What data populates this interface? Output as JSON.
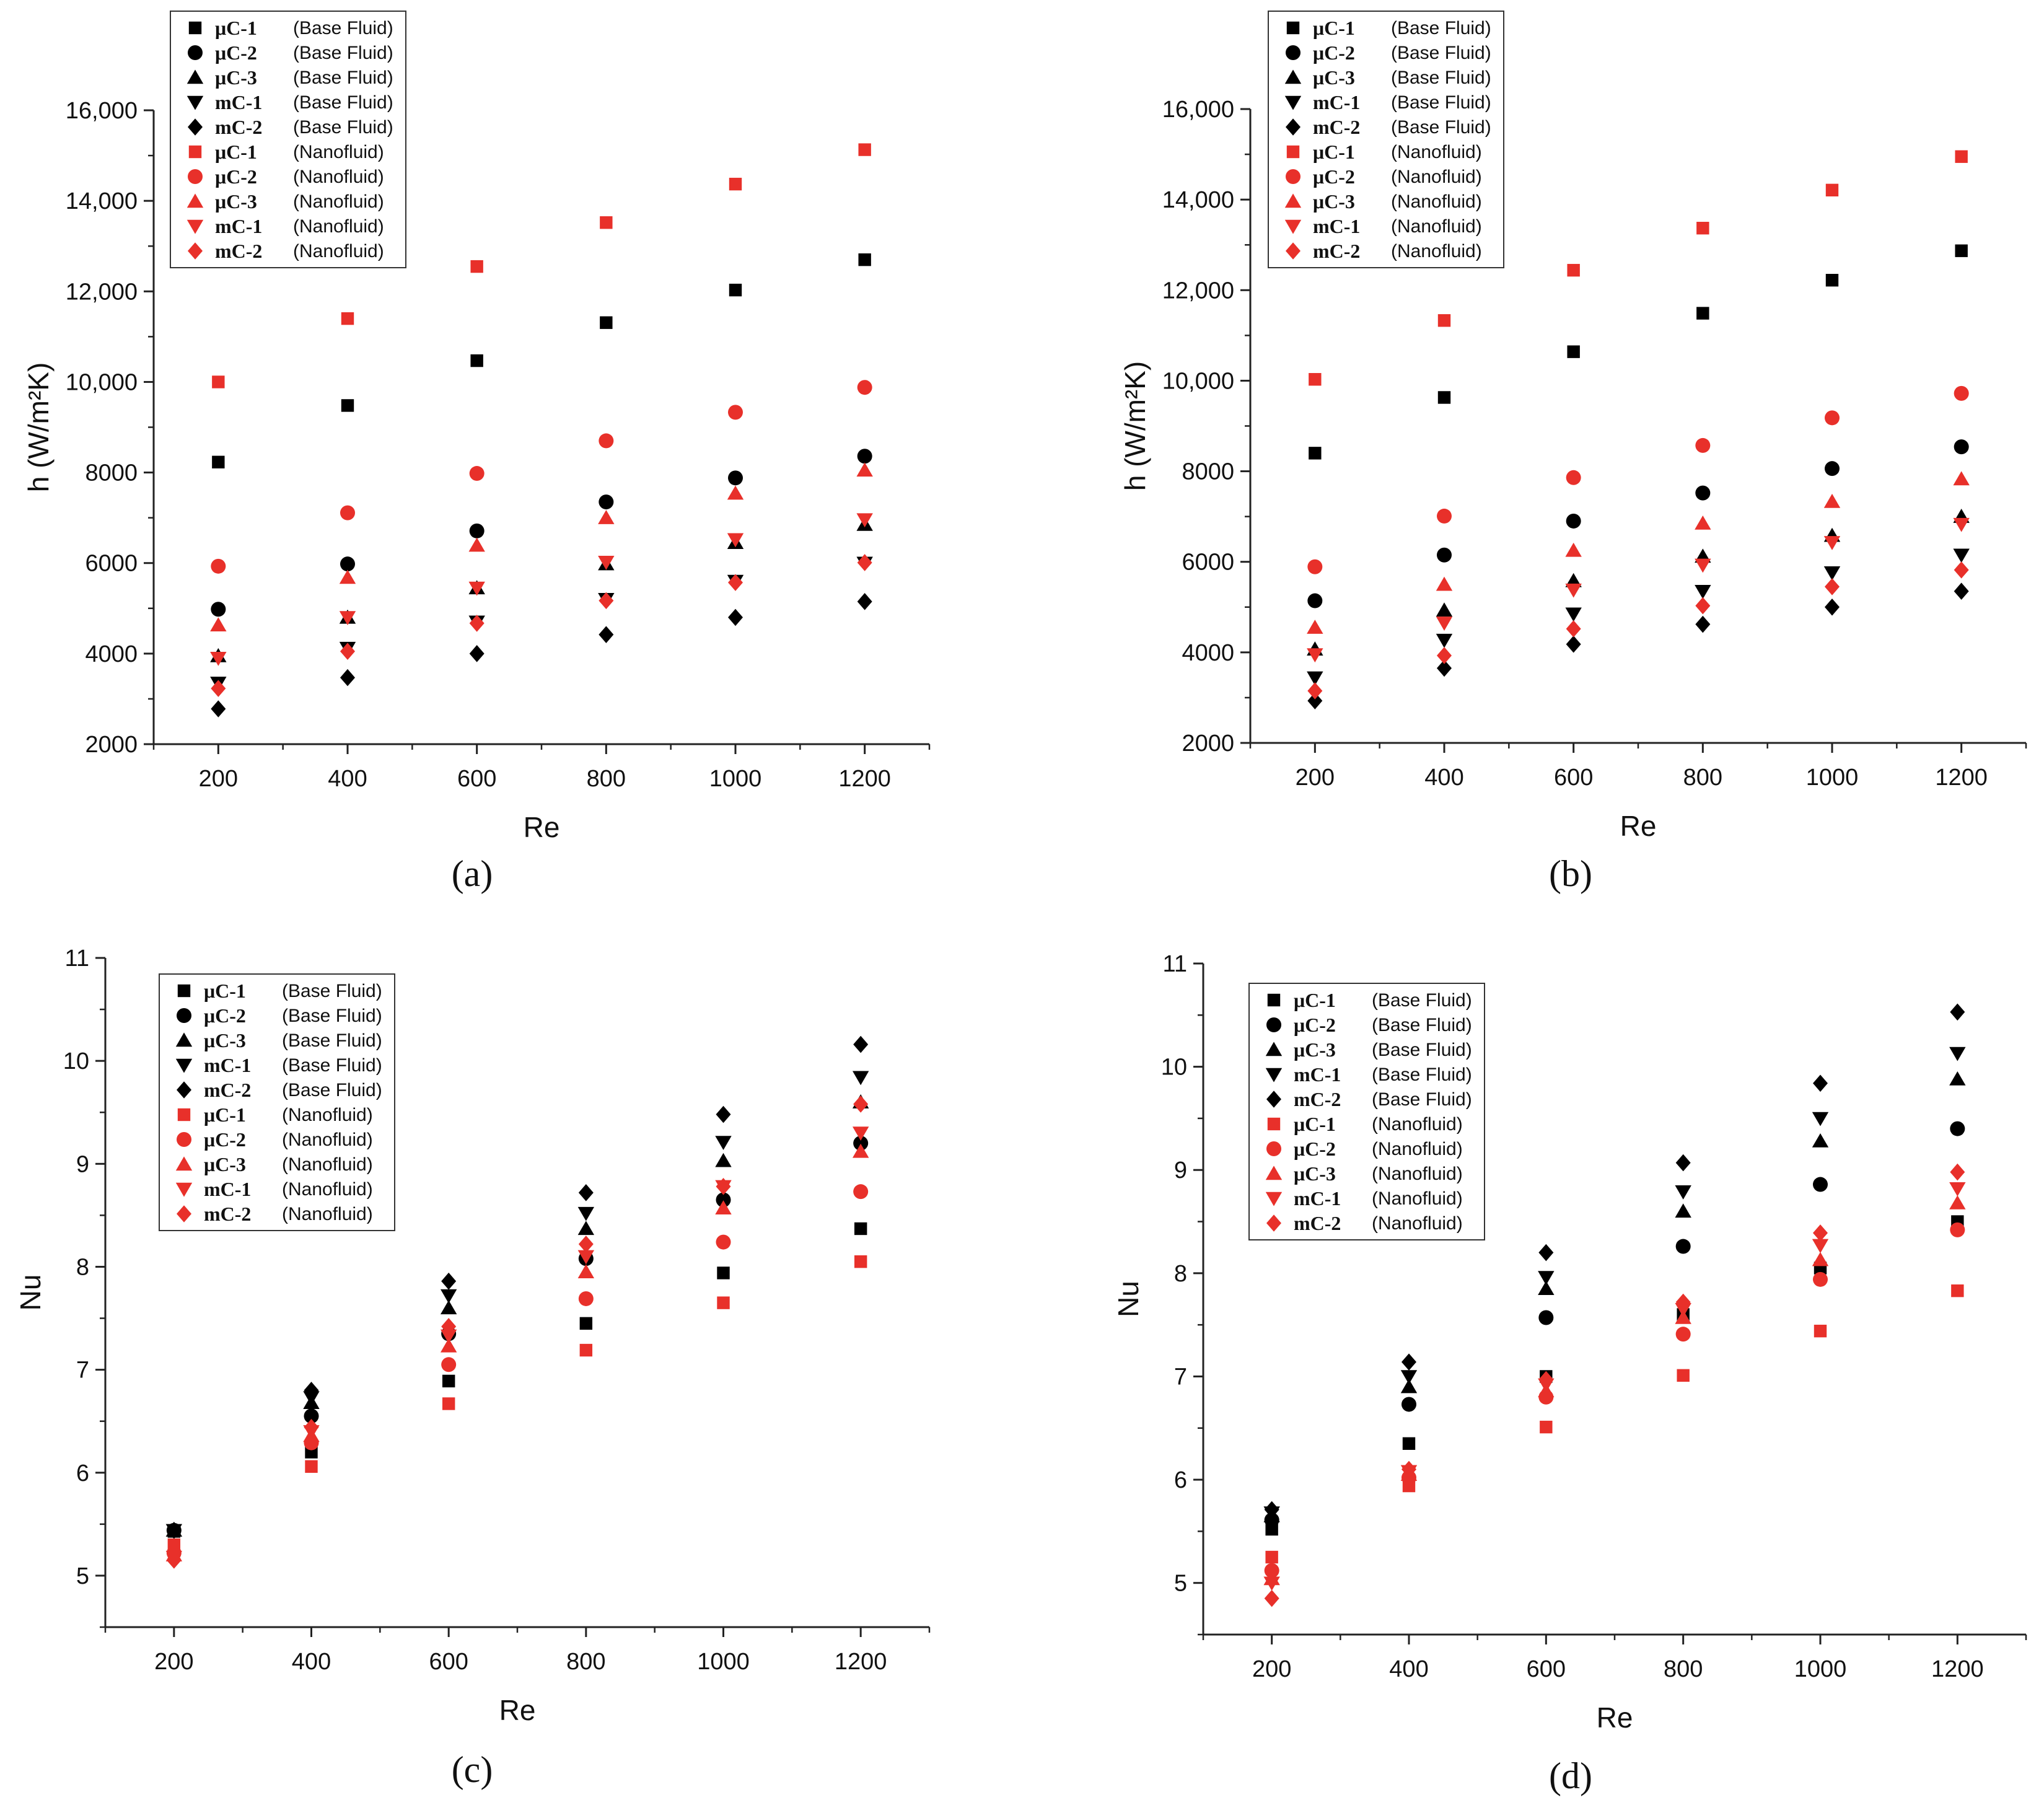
{
  "colors": {
    "base_fluid": "#000000",
    "nanofluid": "#e8302a",
    "axis": "#222222"
  },
  "legend_entries": [
    {
      "code": "μC-1",
      "fluid": "(Base Fluid)",
      "marker": "square",
      "color": "#000000"
    },
    {
      "code": "μC-2",
      "fluid": "(Base Fluid)",
      "marker": "circle",
      "color": "#000000"
    },
    {
      "code": "μC-3",
      "fluid": "(Base Fluid)",
      "marker": "triangle-up",
      "color": "#000000"
    },
    {
      "code": "mC-1",
      "fluid": "(Base Fluid)",
      "marker": "triangle-down",
      "color": "#000000"
    },
    {
      "code": "mC-2",
      "fluid": "(Base Fluid)",
      "marker": "diamond",
      "color": "#000000"
    },
    {
      "code": "μC-1",
      "fluid": "(Nanofluid)",
      "marker": "square",
      "color": "#e8302a"
    },
    {
      "code": "μC-2",
      "fluid": "(Nanofluid)",
      "marker": "circle",
      "color": "#e8302a"
    },
    {
      "code": "μC-3",
      "fluid": "(Nanofluid)",
      "marker": "triangle-up",
      "color": "#e8302a"
    },
    {
      "code": "mC-1",
      "fluid": "(Nanofluid)",
      "marker": "triangle-down",
      "color": "#e8302a"
    },
    {
      "code": "mC-2",
      "fluid": "(Nanofluid)",
      "marker": "diamond",
      "color": "#e8302a"
    }
  ],
  "chart_data": [
    {
      "panel": "(a)",
      "type": "scatter",
      "xlabel": "Re",
      "ylabel": "h (W/m²K)",
      "x": [
        200,
        400,
        600,
        800,
        1000,
        1200
      ],
      "xticks": [
        "200",
        "400",
        "600",
        "800",
        "1000",
        "1200"
      ],
      "xlim": [
        100,
        1300
      ],
      "ylim": [
        2000,
        16000
      ],
      "yticks": [
        "2000",
        "4000",
        "6000",
        "8000",
        "10,000",
        "12,000",
        "14,000",
        "16,000"
      ],
      "legend_position": "top-left",
      "series": [
        {
          "name": "μC-1 (Base Fluid)",
          "values": [
            8230,
            9480,
            10470,
            11310,
            12030,
            12700
          ]
        },
        {
          "name": "μC-2 (Base Fluid)",
          "values": [
            4980,
            5980,
            6710,
            7350,
            7880,
            8360
          ]
        },
        {
          "name": "μC-3 (Base Fluid)",
          "values": [
            3950,
            4800,
            5450,
            5980,
            6450,
            6850
          ]
        },
        {
          "name": "mC-1 (Base Fluid)",
          "values": [
            3350,
            4120,
            4700,
            5200,
            5600,
            6000
          ]
        },
        {
          "name": "mC-2 (Base Fluid)",
          "values": [
            2780,
            3470,
            4000,
            4420,
            4800,
            5150
          ]
        },
        {
          "name": "μC-1 (Nanofluid)",
          "values": [
            10000,
            11400,
            12550,
            13520,
            14370,
            15130
          ]
        },
        {
          "name": "μC-2 (Nanofluid)",
          "values": [
            5930,
            7110,
            7980,
            8700,
            9330,
            9880
          ]
        },
        {
          "name": "μC-3 (Nanofluid)",
          "values": [
            4630,
            5680,
            6390,
            7000,
            7540,
            8050
          ]
        },
        {
          "name": "mC-1 (Nanofluid)",
          "values": [
            3900,
            4800,
            5450,
            6020,
            6520,
            6960
          ]
        },
        {
          "name": "mC-2 (Nanofluid)",
          "values": [
            3230,
            4050,
            4670,
            5170,
            5570,
            6010
          ]
        }
      ]
    },
    {
      "panel": "(b)",
      "type": "scatter",
      "xlabel": "Re",
      "ylabel": "h (W/m²K)",
      "x": [
        200,
        400,
        600,
        800,
        1000,
        1200
      ],
      "xticks": [
        "200",
        "400",
        "600",
        "800",
        "1000",
        "1200"
      ],
      "xlim": [
        100,
        1300
      ],
      "ylim": [
        2000,
        16000
      ],
      "yticks": [
        "2000",
        "4000",
        "6000",
        "8000",
        "10,000",
        "12,000",
        "14,000",
        "16,000"
      ],
      "legend_position": "top-left",
      "series": [
        {
          "name": "μC-1 (Base Fluid)",
          "values": [
            8400,
            9630,
            10640,
            11490,
            12220,
            12870
          ]
        },
        {
          "name": "μC-2 (Base Fluid)",
          "values": [
            5140,
            6150,
            6900,
            7520,
            8060,
            8540
          ]
        },
        {
          "name": "μC-3 (Base Fluid)",
          "values": [
            4070,
            4930,
            5580,
            6120,
            6580,
            7000
          ]
        },
        {
          "name": "mC-1 (Base Fluid)",
          "values": [
            3440,
            4270,
            4850,
            5350,
            5760,
            6150
          ]
        },
        {
          "name": "mC-2 (Base Fluid)",
          "values": [
            2930,
            3650,
            4180,
            4620,
            5000,
            5350
          ]
        },
        {
          "name": "μC-1 (Nanofluid)",
          "values": [
            10030,
            11330,
            12440,
            13370,
            14210,
            14950
          ]
        },
        {
          "name": "μC-2 (Nanofluid)",
          "values": [
            5890,
            7010,
            7860,
            8570,
            9180,
            9720
          ]
        },
        {
          "name": "μC-3 (Nanofluid)",
          "values": [
            4550,
            5500,
            6250,
            6850,
            7330,
            7830
          ]
        },
        {
          "name": "mC-1 (Nanofluid)",
          "values": [
            3950,
            4650,
            5380,
            5930,
            6430,
            6830
          ]
        },
        {
          "name": "mC-2 (Nanofluid)",
          "values": [
            3150,
            3930,
            4520,
            5030,
            5450,
            5820
          ]
        }
      ]
    },
    {
      "panel": "(c)",
      "type": "scatter",
      "xlabel": "Re",
      "ylabel": "Nu",
      "x": [
        200,
        400,
        600,
        800,
        1000,
        1200
      ],
      "xticks": [
        "200",
        "400",
        "600",
        "800",
        "1000",
        "1200"
      ],
      "xlim": [
        100,
        1300
      ],
      "ylim": [
        4.5,
        11
      ],
      "yticks": [
        "5",
        "6",
        "7",
        "8",
        "9",
        "10",
        "11"
      ],
      "legend_position": "top-left",
      "series": [
        {
          "name": "μC-1 (Base Fluid)",
          "values": [
            5.43,
            6.2,
            6.89,
            7.45,
            7.94,
            8.37
          ]
        },
        {
          "name": "μC-2 (Base Fluid)",
          "values": [
            5.44,
            6.55,
            7.35,
            8.08,
            8.65,
            9.2
          ]
        },
        {
          "name": "μC-3 (Base Fluid)",
          "values": [
            5.44,
            6.68,
            7.6,
            8.37,
            9.03,
            9.6
          ]
        },
        {
          "name": "mC-1 (Base Fluid)",
          "values": [
            5.44,
            6.73,
            7.72,
            8.52,
            9.21,
            9.84
          ]
        },
        {
          "name": "mC-2 (Base Fluid)",
          "values": [
            5.44,
            6.8,
            7.86,
            8.72,
            9.48,
            10.16
          ]
        },
        {
          "name": "μC-1 (Nanofluid)",
          "values": [
            5.3,
            6.06,
            6.67,
            7.19,
            7.65,
            8.05
          ]
        },
        {
          "name": "μC-2 (Nanofluid)",
          "values": [
            5.22,
            6.29,
            7.05,
            7.69,
            8.24,
            8.73
          ]
        },
        {
          "name": "μC-3 (Nanofluid)",
          "values": [
            5.2,
            6.36,
            7.23,
            7.95,
            8.57,
            9.12
          ]
        },
        {
          "name": "mC-1 (Nanofluid)",
          "values": [
            5.18,
            6.4,
            7.33,
            8.1,
            8.78,
            9.3
          ]
        },
        {
          "name": "mC-2 (Nanofluid)",
          "values": [
            5.15,
            6.44,
            7.42,
            8.22,
            8.78,
            9.58
          ]
        }
      ]
    },
    {
      "panel": "(d)",
      "type": "scatter",
      "xlabel": "Re",
      "ylabel": "Nu",
      "x": [
        200,
        400,
        600,
        800,
        1000,
        1200
      ],
      "xticks": [
        "200",
        "400",
        "600",
        "800",
        "1000",
        "1200"
      ],
      "xlim": [
        100,
        1300
      ],
      "ylim": [
        4.5,
        11
      ],
      "yticks": [
        "5",
        "6",
        "7",
        "8",
        "9",
        "10",
        "11"
      ],
      "legend_position": "top-left",
      "series": [
        {
          "name": "μC-1 (Base Fluid)",
          "values": [
            5.52,
            6.35,
            7.0,
            7.6,
            8.05,
            8.5
          ]
        },
        {
          "name": "μC-2 (Base Fluid)",
          "values": [
            5.61,
            6.73,
            7.57,
            8.26,
            8.86,
            9.4
          ]
        },
        {
          "name": "μC-3 (Base Fluid)",
          "values": [
            5.65,
            6.9,
            7.85,
            8.6,
            9.28,
            9.88
          ]
        },
        {
          "name": "mC-1 (Base Fluid)",
          "values": [
            5.68,
            7.0,
            7.96,
            8.79,
            9.5,
            10.13
          ]
        },
        {
          "name": "mC-2 (Base Fluid)",
          "values": [
            5.71,
            7.14,
            8.2,
            9.07,
            9.84,
            10.53
          ]
        },
        {
          "name": "μC-1 (Nanofluid)",
          "values": [
            5.25,
            5.94,
            6.51,
            7.01,
            7.44,
            7.83
          ]
        },
        {
          "name": "μC-2 (Nanofluid)",
          "values": [
            5.12,
            6.02,
            6.8,
            7.41,
            7.94,
            8.42
          ]
        },
        {
          "name": "μC-3 (Nanofluid)",
          "values": [
            5.04,
            6.05,
            6.86,
            7.57,
            8.13,
            8.68
          ]
        },
        {
          "name": "mC-1 (Nanofluid)",
          "values": [
            5.0,
            6.08,
            6.92,
            7.65,
            8.27,
            8.82
          ]
        },
        {
          "name": "mC-2 (Nanofluid)",
          "values": [
            4.85,
            6.1,
            6.97,
            7.72,
            8.39,
            8.98
          ]
        }
      ]
    }
  ]
}
